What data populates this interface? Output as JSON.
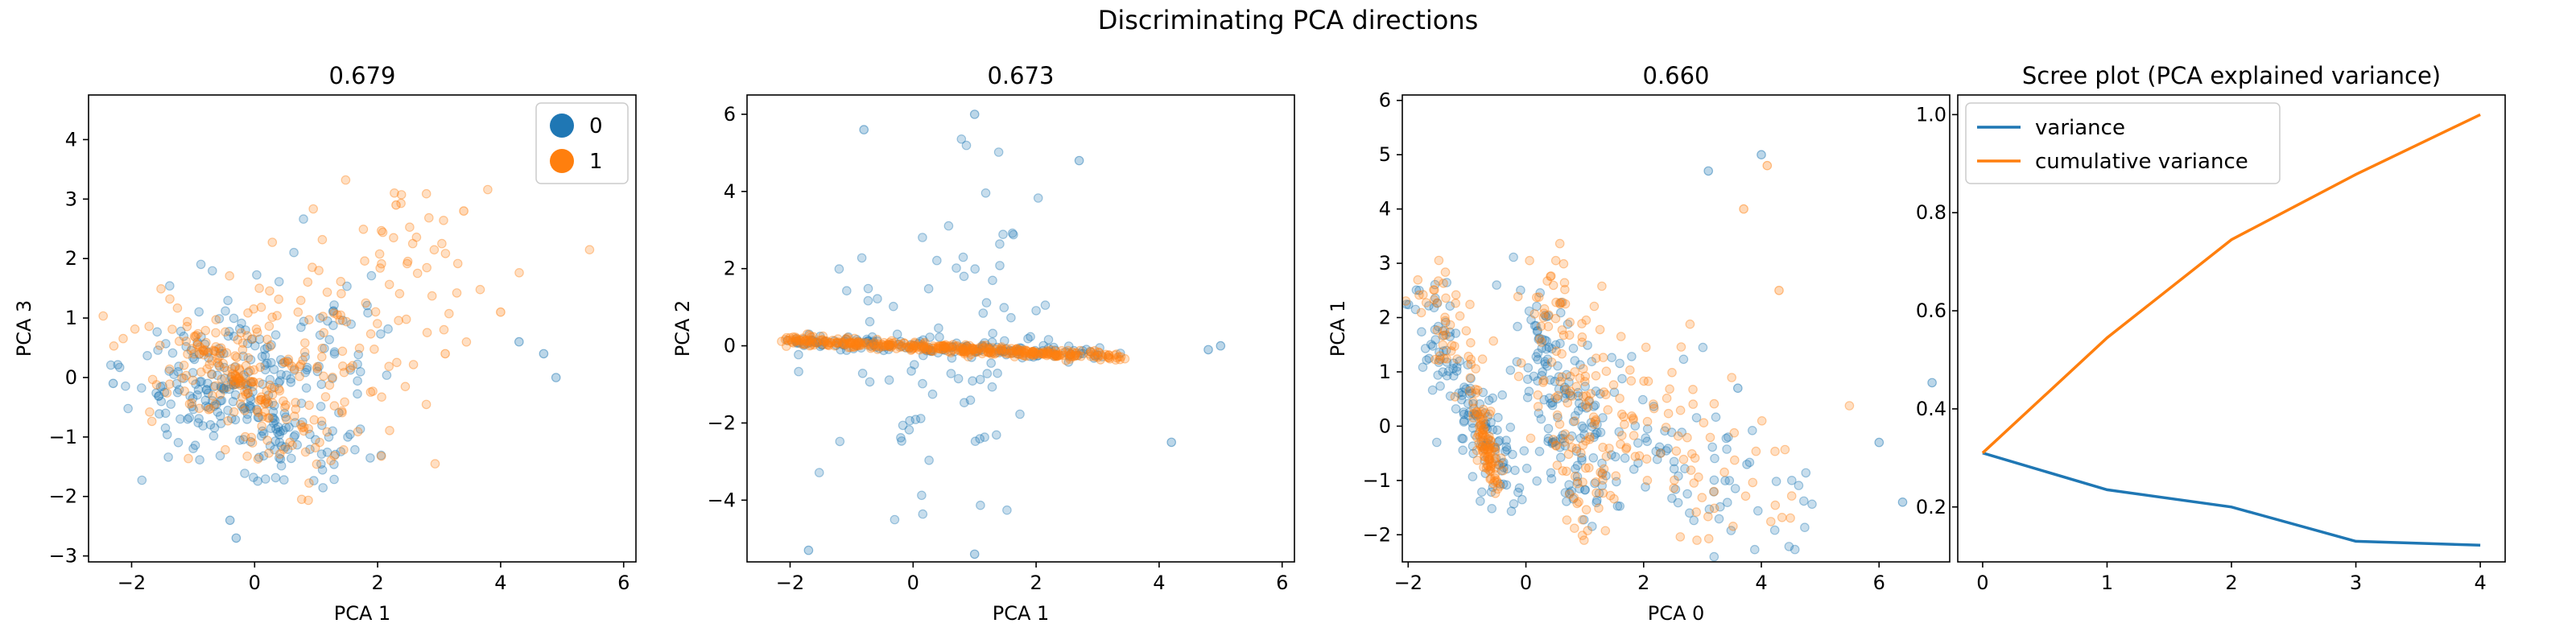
{
  "figure": {
    "suptitle": "Discriminating PCA directions"
  },
  "chart_data": [
    {
      "type": "scatter",
      "title": "0.679",
      "xlabel": "PCA 1",
      "ylabel": "PCA 3",
      "xlim": [
        -2.7,
        6.2
      ],
      "ylim": [
        -3.1,
        4.75
      ],
      "xticks": [
        -2,
        0,
        2,
        4,
        6
      ],
      "yticks": [
        -3,
        -2,
        -1,
        0,
        1,
        2,
        3,
        4
      ],
      "legend": {
        "placement": "top-right",
        "entries": [
          {
            "label": "0",
            "color": "#1f77b4"
          },
          {
            "label": "1",
            "color": "#ff7f0e"
          }
        ]
      },
      "seed": 11,
      "clusters": [
        {
          "series": "0",
          "n": 170,
          "x0": -1.2,
          "y0": 0.6,
          "x1": 0.9,
          "y1": -1.3,
          "spread_x": 0.6,
          "spread_y": 0.5
        },
        {
          "series": "0",
          "n": 120,
          "x0": -1.9,
          "y0": -0.4,
          "x1": 1.9,
          "y1": 1.0,
          "spread_x": 0.5,
          "spread_y": 0.6
        },
        {
          "series": "1",
          "n": 150,
          "x0": -1.5,
          "y0": 0.7,
          "x1": 1.2,
          "y1": -1.0,
          "spread_x": 0.7,
          "spread_y": 0.6
        },
        {
          "series": "1",
          "n": 100,
          "x0": 0.0,
          "y0": 0.0,
          "x1": 3.2,
          "y1": 2.2,
          "spread_x": 0.8,
          "spread_y": 0.8
        },
        {
          "series": "1",
          "n": 60,
          "x0": -1.0,
          "y0": 0.7,
          "x1": 0.3,
          "y1": -0.6,
          "spread_x": 0.1,
          "spread_y": 0.1
        }
      ],
      "extra_points": [
        {
          "series": "0",
          "x": -0.3,
          "y": -2.7
        },
        {
          "series": "0",
          "x": -0.4,
          "y": -2.4
        },
        {
          "series": "0",
          "x": 4.3,
          "y": 0.6
        },
        {
          "series": "0",
          "x": 4.9,
          "y": 0.0
        },
        {
          "series": "0",
          "x": 4.7,
          "y": 0.4
        },
        {
          "series": "0",
          "x": -2.3,
          "y": -0.1
        },
        {
          "series": "1",
          "x": 3.4,
          "y": 2.8
        },
        {
          "series": "1",
          "x": 2.3,
          "y": 2.9
        },
        {
          "series": "1",
          "x": 4.0,
          "y": 1.1
        },
        {
          "series": "1",
          "x": 3.1,
          "y": 0.4
        }
      ]
    },
    {
      "type": "scatter",
      "title": "0.673",
      "xlabel": "PCA 1",
      "ylabel": "PCA 2",
      "xlim": [
        -2.7,
        6.2
      ],
      "ylim": [
        -5.6,
        6.5
      ],
      "xticks": [
        -2,
        0,
        2,
        4,
        6
      ],
      "yticks": [
        -4,
        -2,
        0,
        2,
        4,
        6
      ],
      "seed": 23,
      "clusters": [
        {
          "series": "0",
          "n": 150,
          "x0": -2.0,
          "y0": 0.12,
          "x1": 3.2,
          "y1": -0.25,
          "spread_x": 0.15,
          "spread_y": 0.08
        },
        {
          "series": "0",
          "n": 90,
          "x0": -0.8,
          "y0": 0.0,
          "x1": 2.0,
          "y1": 0.0,
          "spread_x": 0.6,
          "spread_y": 2.4
        },
        {
          "series": "1",
          "n": 380,
          "x0": -2.0,
          "y0": 0.15,
          "x1": 3.3,
          "y1": -0.3,
          "spread_x": 0.1,
          "spread_y": 0.06
        }
      ],
      "extra_points": [
        {
          "series": "0",
          "x": 1.0,
          "y": 6.0
        },
        {
          "series": "0",
          "x": -0.8,
          "y": 5.6
        },
        {
          "series": "0",
          "x": 1.0,
          "y": -5.4
        },
        {
          "series": "0",
          "x": -1.7,
          "y": -5.3
        },
        {
          "series": "0",
          "x": 4.2,
          "y": -2.5
        },
        {
          "series": "0",
          "x": 2.7,
          "y": 4.8
        },
        {
          "series": "0",
          "x": 4.8,
          "y": -0.1
        },
        {
          "series": "0",
          "x": 5.0,
          "y": 0.0
        }
      ]
    },
    {
      "type": "scatter",
      "title": "0.660",
      "xlabel": "PCA 0",
      "ylabel": "PCA 1",
      "xlim": [
        -2.1,
        7.2
      ],
      "ylim": [
        -2.5,
        6.1
      ],
      "xticks": [
        -2,
        0,
        2,
        4,
        6
      ],
      "yticks": [
        -2,
        -1,
        0,
        1,
        2,
        3,
        4,
        5,
        6
      ],
      "seed": 37,
      "clusters": [
        {
          "series": "0",
          "n": 140,
          "x0": -1.8,
          "y0": 2.2,
          "x1": -0.3,
          "y1": -1.2,
          "spread_x": 0.25,
          "spread_y": 0.35
        },
        {
          "series": "0",
          "n": 130,
          "x0": 0.0,
          "y0": 2.5,
          "x1": 1.2,
          "y1": -1.6,
          "spread_x": 0.3,
          "spread_y": 0.4
        },
        {
          "series": "0",
          "n": 90,
          "x0": 0.5,
          "y0": 0.6,
          "x1": 4.5,
          "y1": -1.6,
          "spread_x": 0.7,
          "spread_y": 0.6
        },
        {
          "series": "1",
          "n": 90,
          "x0": -0.8,
          "y0": 0.3,
          "x1": -0.5,
          "y1": -1.1,
          "spread_x": 0.07,
          "spread_y": 0.15
        },
        {
          "series": "1",
          "n": 120,
          "x0": 0.2,
          "y0": 3.0,
          "x1": 1.4,
          "y1": -1.8,
          "spread_x": 0.35,
          "spread_y": 0.4
        },
        {
          "series": "1",
          "n": 90,
          "x0": 1.0,
          "y0": 1.2,
          "x1": 4.0,
          "y1": -1.6,
          "spread_x": 0.7,
          "spread_y": 0.6
        },
        {
          "series": "1",
          "n": 50,
          "x0": -1.7,
          "y0": 2.7,
          "x1": -0.9,
          "y1": 0.6,
          "spread_x": 0.2,
          "spread_y": 0.3
        }
      ],
      "extra_points": [
        {
          "series": "0",
          "x": 6.0,
          "y": -0.3
        },
        {
          "series": "0",
          "x": 6.9,
          "y": 0.8
        },
        {
          "series": "0",
          "x": 6.4,
          "y": -1.4
        },
        {
          "series": "0",
          "x": 4.0,
          "y": 5.0
        },
        {
          "series": "0",
          "x": 3.1,
          "y": 4.7
        },
        {
          "series": "0",
          "x": 3.6,
          "y": 0.7
        },
        {
          "series": "1",
          "x": 4.1,
          "y": 4.8
        },
        {
          "series": "1",
          "x": 3.7,
          "y": 4.0
        },
        {
          "series": "1",
          "x": 4.3,
          "y": 2.5
        }
      ]
    },
    {
      "type": "line",
      "title": "Scree plot (PCA explained variance)",
      "xlabel": "",
      "ylabel": "",
      "x": [
        0,
        1,
        2,
        3,
        4
      ],
      "xlim": [
        -0.2,
        4.2
      ],
      "ylim": [
        0.088,
        1.04
      ],
      "xticks": [
        0,
        1,
        2,
        3,
        4
      ],
      "yticks": [
        0.2,
        0.4,
        0.6,
        0.8,
        1.0
      ],
      "legend": {
        "placement": "top-left"
      },
      "series": [
        {
          "name": "variance",
          "color": "#1f77b4",
          "values": [
            0.31,
            0.235,
            0.2,
            0.13,
            0.122
          ]
        },
        {
          "name": "cumulative variance",
          "color": "#ff7f0e",
          "values": [
            0.31,
            0.545,
            0.745,
            0.878,
            1.0
          ]
        }
      ]
    }
  ]
}
